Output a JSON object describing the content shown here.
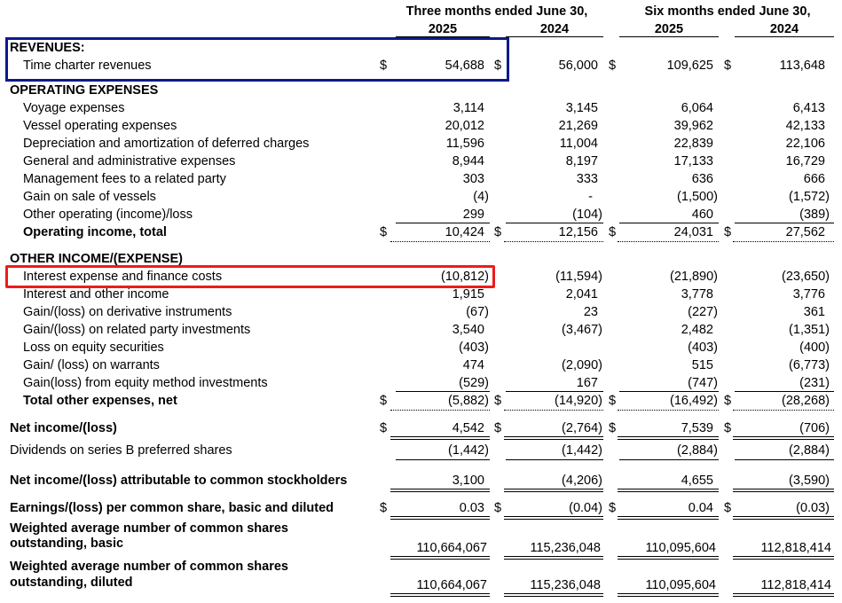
{
  "headers": {
    "three_months": "Three months ended June 30,",
    "six_months": "Six months ended June 30,",
    "y2025a": "2025",
    "y2024a": "2024",
    "y2025b": "2025",
    "y2024b": "2024"
  },
  "dollar": "$",
  "rows": [
    {
      "label": "REVENUES:",
      "bold": true
    },
    {
      "label": "Time charter revenues",
      "dollars": true,
      "v": [
        "54,688",
        "56,000",
        "109,625",
        "113,648"
      ]
    },
    {
      "label": "OPERATING EXPENSES",
      "bold": true
    },
    {
      "label": "Voyage expenses",
      "v": [
        "3,114",
        "3,145",
        "6,064",
        "6,413"
      ]
    },
    {
      "label": "Vessel operating expenses",
      "v": [
        "20,012",
        "21,269",
        "39,962",
        "42,133"
      ]
    },
    {
      "label": "Depreciation and amortization of deferred charges",
      "v": [
        "11,596",
        "11,004",
        "22,839",
        "22,106"
      ]
    },
    {
      "label": "General and administrative expenses",
      "v": [
        "8,944",
        "8,197",
        "17,133",
        "16,729"
      ]
    },
    {
      "label": "Management fees to a related party",
      "v": [
        "303",
        "333",
        "636",
        "666"
      ]
    },
    {
      "label": "Gain on sale of vessels",
      "v": [
        "(4)",
        "-",
        "(1,500)",
        "(1,572)"
      ]
    },
    {
      "label": "Other operating (income)/loss",
      "v": [
        "299",
        "(104)",
        "460",
        "(389)"
      ]
    },
    {
      "label": "Operating income, total",
      "bold": true,
      "dollars": true,
      "v": [
        "10,424",
        "12,156",
        "24,031",
        "27,562"
      ]
    },
    {
      "label": "OTHER INCOME/(EXPENSE)",
      "bold": true
    },
    {
      "label": "Interest expense and finance costs",
      "v": [
        "(10,812)",
        "(11,594)",
        "(21,890)",
        "(23,650)"
      ]
    },
    {
      "label": "Interest and other income",
      "v": [
        "1,915",
        "2,041",
        "3,778",
        "3,776"
      ]
    },
    {
      "label": "Gain/(loss) on derivative instruments",
      "v": [
        "(67)",
        "23",
        "(227)",
        "361"
      ]
    },
    {
      "label": "Gain/(loss) on related party investments",
      "v": [
        "3,540",
        "(3,467)",
        "2,482",
        "(1,351)"
      ]
    },
    {
      "label": "Loss on equity securities",
      "v": [
        "(403)",
        "",
        "(403)",
        "(400)"
      ]
    },
    {
      "label": "Gain/ (loss) on warrants",
      "v": [
        "474",
        "(2,090)",
        "515",
        "(6,773)"
      ]
    },
    {
      "label": "Gain(loss) from equity method investments",
      "v": [
        "(529)",
        "167",
        "(747)",
        "(231)"
      ]
    },
    {
      "label": "Total other expenses, net",
      "bold": true,
      "dollars": true,
      "v": [
        "(5,882)",
        "(14,920)",
        "(16,492)",
        "(28,268)"
      ]
    },
    {
      "label": "Net income/(loss)",
      "bold": true,
      "dollars": true,
      "v": [
        "4,542",
        "(2,764)",
        "7,539",
        "(706)"
      ]
    },
    {
      "label": "Dividends on series B preferred shares",
      "v": [
        "(1,442)",
        "(1,442)",
        "(2,884)",
        "(2,884)"
      ]
    },
    {
      "label": "Net income/(loss) attributable to common stockholders",
      "bold": true,
      "v": [
        "3,100",
        "(4,206)",
        "4,655",
        "(3,590)"
      ]
    },
    {
      "label": "Earnings/(loss) per common share, basic and diluted",
      "bold": true,
      "dollars": true,
      "v": [
        "0.03",
        "(0.04)",
        "0.04",
        "(0.03)"
      ]
    },
    {
      "label": "Weighted average number of common shares",
      "label2": "outstanding, basic",
      "bold": true,
      "v": [
        "110,664,067",
        "115,236,048",
        "110,095,604",
        "112,818,414"
      ]
    },
    {
      "label": "Weighted average number of common shares",
      "label2": "outstanding, diluted",
      "bold": true,
      "v": [
        "110,664,067",
        "115,236,048",
        "110,095,604",
        "112,818,414"
      ]
    }
  ]
}
